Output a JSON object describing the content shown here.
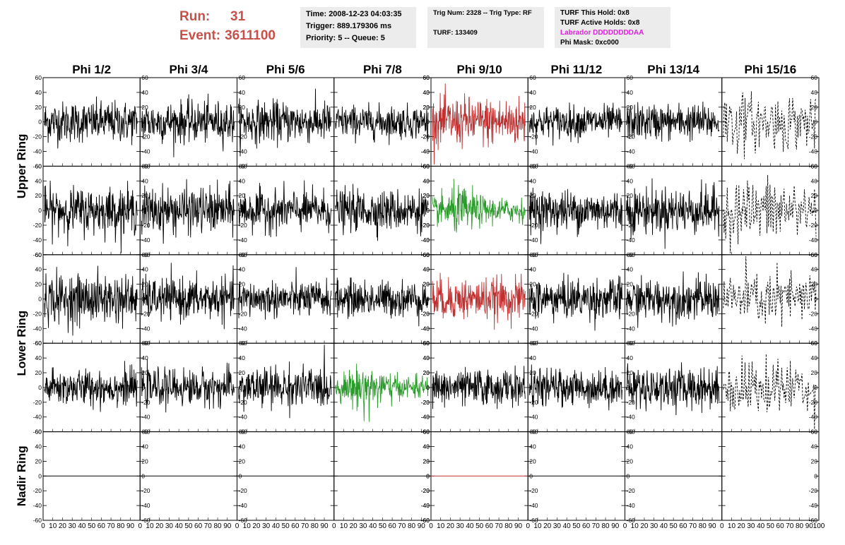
{
  "run": {
    "run_label": "Run:",
    "run_value": "31",
    "event_label": "Event:",
    "event_value": "3611100"
  },
  "info_time": {
    "line1": "Time: 2008-12-23 04:03:35",
    "line2": "Trigger: 889.179306 ms",
    "line3": "Priority: 5 -- Queue: 5"
  },
  "info_trig": {
    "line1": "Trig Num: 2328 -- Trig Type: RF",
    "line2": "TURF: 133409"
  },
  "info_turf": {
    "line1": "TURF This Hold: 0x8",
    "line2": "TURF Active Holds: 0x8",
    "line3": "Labrador DDDDDDDDAA",
    "line4": "Phi Mask: 0xc000"
  },
  "colors": {
    "text_red": "#c8504a",
    "magenta": "#e020e0",
    "trace_black": "#000000",
    "trace_red": "#c03030",
    "trace_green": "#2a9a2a",
    "info_bg": "#ececec"
  },
  "chart_data": {
    "type": "line",
    "columns": [
      "Phi 1/2",
      "Phi 3/4",
      "Phi 5/6",
      "Phi 7/8",
      "Phi 9/10",
      "Phi 11/12",
      "Phi 13/14",
      "Phi 15/16"
    ],
    "rows": [
      "Upper Ring",
      "Lower Ring",
      "Nadir Ring"
    ],
    "y_ticks": [
      "60",
      "40",
      "20",
      "0",
      "-20",
      "-40",
      "-60"
    ],
    "ylim": [
      -60,
      60
    ],
    "x_ticks": [
      "0",
      "10",
      "20",
      "30",
      "40",
      "50",
      "60",
      "70",
      "80",
      "90",
      "100"
    ],
    "xlim": [
      0,
      100
    ],
    "panel_styles": [
      [
        "black",
        "black",
        "black",
        "black",
        "red",
        "black",
        "black",
        "dashed"
      ],
      [
        "black",
        "black",
        "black",
        "black",
        "green",
        "black",
        "black",
        "dashed"
      ],
      [
        "black",
        "black",
        "black",
        "black",
        "red",
        "black",
        "black",
        "dashed"
      ],
      [
        "black",
        "black",
        "black",
        "green",
        "black",
        "black",
        "black",
        "dashed"
      ],
      [
        "flat",
        "flat",
        "flat",
        "flat",
        "flat-red",
        "flat",
        "flat",
        "none"
      ]
    ],
    "panel_amplitude": [
      [
        25,
        25,
        25,
        20,
        30,
        20,
        22,
        35
      ],
      [
        28,
        28,
        25,
        25,
        25,
        25,
        28,
        40
      ],
      [
        30,
        25,
        22,
        22,
        25,
        25,
        25,
        35
      ],
      [
        22,
        22,
        25,
        22,
        22,
        22,
        25,
        35
      ],
      [
        0,
        0,
        0,
        0,
        0,
        0,
        0,
        0
      ]
    ]
  }
}
